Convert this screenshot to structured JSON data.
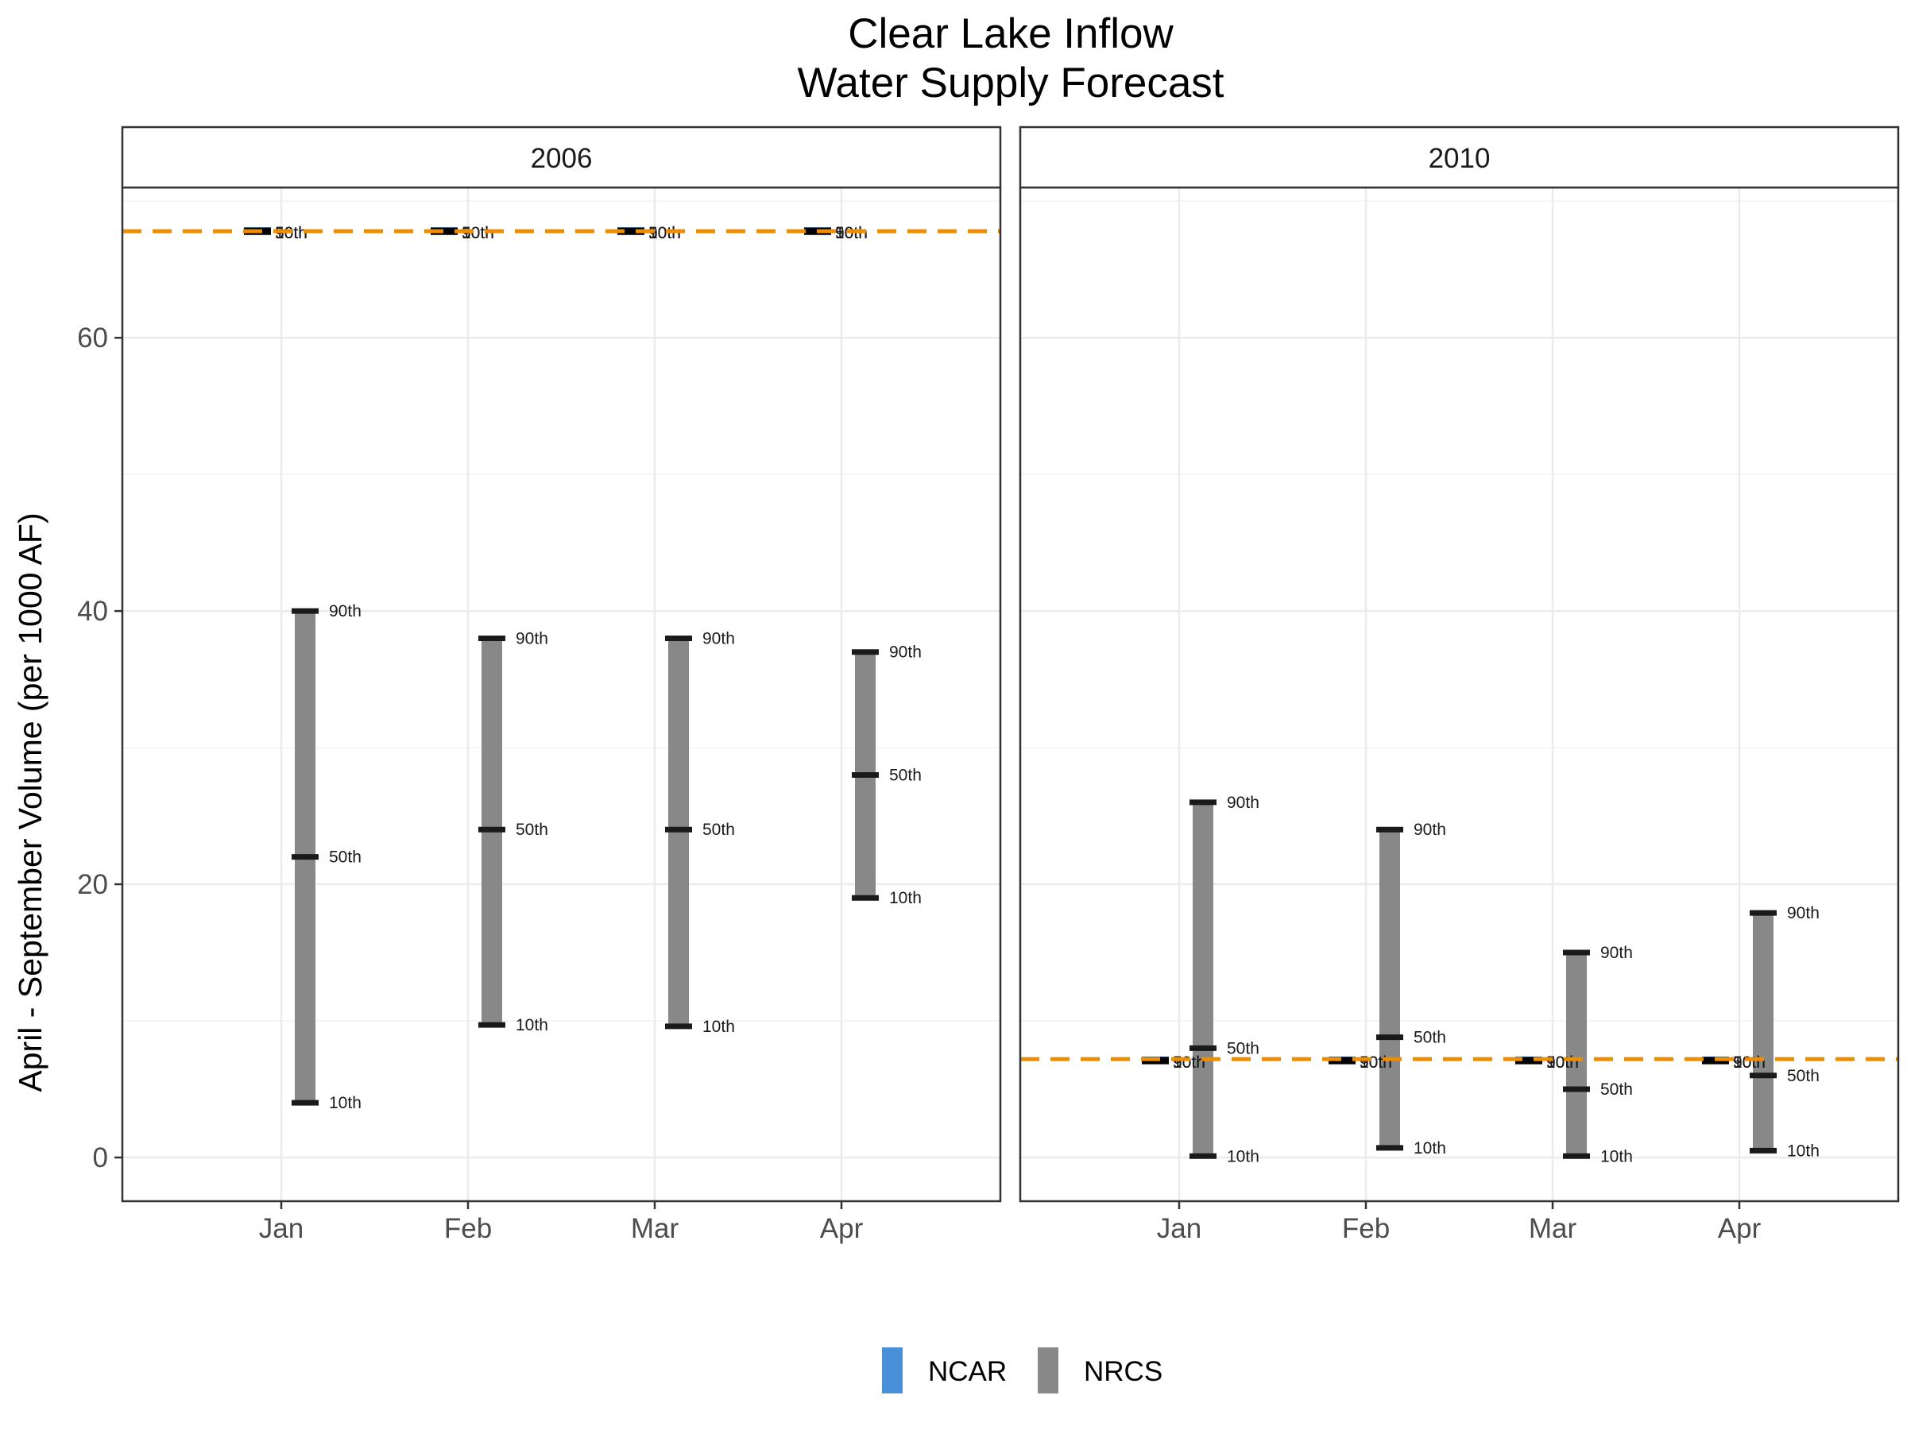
{
  "chart_data": {
    "type": "range",
    "title_lines": [
      "Clear Lake Inflow",
      "Water Supply Forecast"
    ],
    "ylabel": "April - September Volume (per 1000 AF)",
    "xlabel": "",
    "ylim": [
      -3.2,
      71
    ],
    "yticks": [
      0,
      20,
      40,
      60
    ],
    "grid": true,
    "categories": [
      "Jan",
      "Feb",
      "Mar",
      "Apr"
    ],
    "legend": {
      "position": "bottom",
      "entries": [
        {
          "name": "NCAR",
          "color": "#4a90d9"
        },
        {
          "name": "NRCS",
          "color": "#888888"
        }
      ]
    },
    "reference_line": {
      "color": "#f08c00",
      "style": "dashed"
    },
    "percentile_labels": [
      "10th",
      "50th",
      "90th"
    ],
    "panels": [
      {
        "strip": "2006",
        "reference_value": 67.8,
        "NCAR": [
          {
            "month": "Jan",
            "p10": 67.8,
            "p50": 67.8,
            "p90": 67.8
          },
          {
            "month": "Feb",
            "p10": 67.8,
            "p50": 67.8,
            "p90": 67.8
          },
          {
            "month": "Mar",
            "p10": 67.8,
            "p50": 67.8,
            "p90": 67.8
          },
          {
            "month": "Apr",
            "p10": 67.8,
            "p50": 67.8,
            "p90": 67.8
          }
        ],
        "NRCS": [
          {
            "month": "Jan",
            "p10": 4.0,
            "p50": 22.0,
            "p90": 40.0
          },
          {
            "month": "Feb",
            "p10": 9.7,
            "p50": 24.0,
            "p90": 38.0
          },
          {
            "month": "Mar",
            "p10": 9.6,
            "p50": 24.0,
            "p90": 38.0
          },
          {
            "month": "Apr",
            "p10": 19.0,
            "p50": 28.0,
            "p90": 37.0
          }
        ]
      },
      {
        "strip": "2010",
        "reference_value": 7.2,
        "NCAR": [
          {
            "month": "Jan",
            "p10": 7.1,
            "p50": 7.1,
            "p90": 7.1
          },
          {
            "month": "Feb",
            "p10": 7.1,
            "p50": 7.1,
            "p90": 7.1
          },
          {
            "month": "Mar",
            "p10": 7.1,
            "p50": 7.1,
            "p90": 7.1
          },
          {
            "month": "Apr",
            "p10": 7.1,
            "p50": 7.1,
            "p90": 7.1
          }
        ],
        "NRCS": [
          {
            "month": "Jan",
            "p10": 0.1,
            "p50": 8.0,
            "p90": 26.0
          },
          {
            "month": "Feb",
            "p10": 0.7,
            "p50": 8.8,
            "p90": 24.0
          },
          {
            "month": "Mar",
            "p10": 0.1,
            "p50": 5.0,
            "p90": 15.0
          },
          {
            "month": "Apr",
            "p10": 0.5,
            "p50": 6.0,
            "p90": 17.9
          }
        ]
      }
    ]
  }
}
